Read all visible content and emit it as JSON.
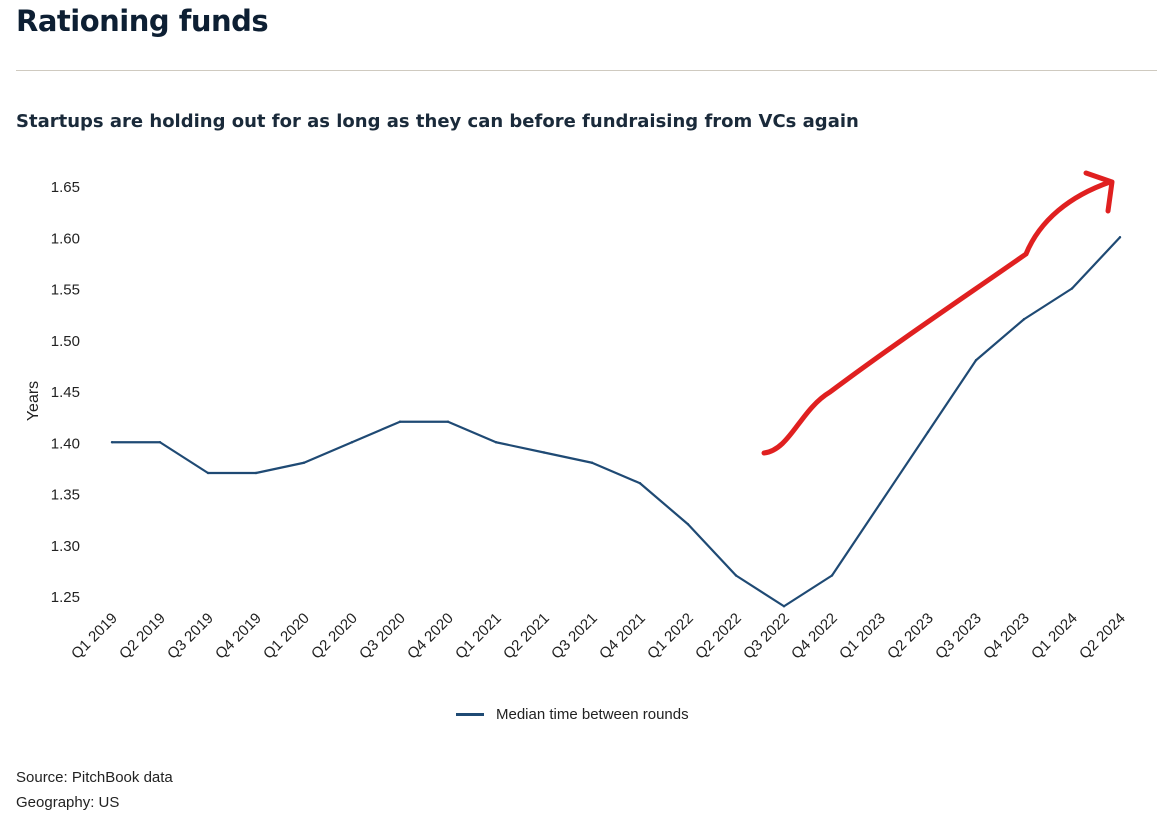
{
  "page": {
    "title": "Rationing funds",
    "subtitle": "Startups are holding out for as long as they can before fundraising from VCs again",
    "source": "Source: PitchBook data",
    "geography": "Geography: US"
  },
  "colors": {
    "series_line": "#1f4a74",
    "annotation_arrow": "#e02020",
    "rule": "#cfcac0"
  },
  "chart_data": {
    "type": "line",
    "title": "Startups are holding out for as long as they can before fundraising from VCs again",
    "xlabel": "",
    "ylabel": "Years",
    "ylim": [
      1.25,
      1.65
    ],
    "yticks": [
      "1.65",
      "1.60",
      "1.55",
      "1.50",
      "1.45",
      "1.40",
      "1.35",
      "1.30",
      "1.25"
    ],
    "grid": false,
    "legend_position": "bottom-center",
    "categories": [
      "Q1 2019",
      "Q2 2019",
      "Q3 2019",
      "Q4 2019",
      "Q1 2020",
      "Q2 2020",
      "Q3 2020",
      "Q4 2020",
      "Q1 2021",
      "Q2 2021",
      "Q3 2021",
      "Q4 2021",
      "Q1 2022",
      "Q2 2022",
      "Q3 2022",
      "Q4 2022",
      "Q1 2023",
      "Q2 2023",
      "Q3 2023",
      "Q4 2023",
      "Q1 2024",
      "Q2 2024"
    ],
    "series": [
      {
        "name": "Median time between rounds",
        "values": [
          1.4,
          1.4,
          1.37,
          1.37,
          1.38,
          1.4,
          1.42,
          1.42,
          1.4,
          1.39,
          1.38,
          1.36,
          1.32,
          1.27,
          1.24,
          1.27,
          1.34,
          1.41,
          1.48,
          1.52,
          1.55,
          1.6
        ]
      }
    ],
    "annotations": [
      {
        "type": "hand-drawn-arrow",
        "color": "#e02020",
        "description_shape": "upward trend arrow",
        "from_category": "Q3 2022",
        "to_category": "Q2 2024"
      }
    ]
  }
}
